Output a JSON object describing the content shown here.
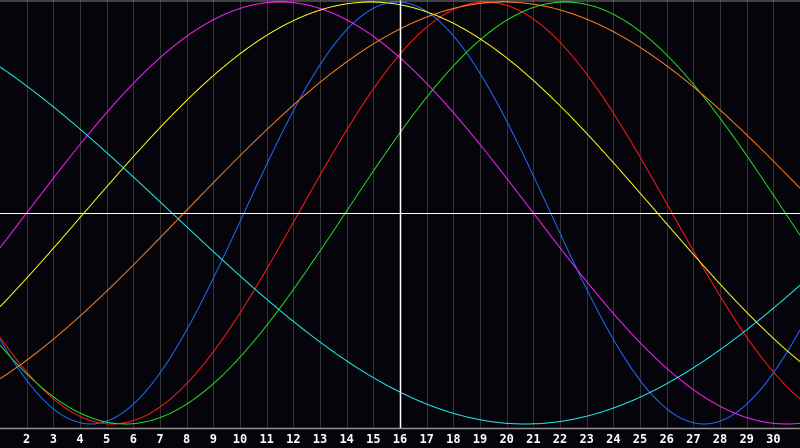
{
  "chart_data": {
    "type": "line",
    "title": "",
    "xlabel": "",
    "ylabel": "",
    "x_tick_labels": [
      "2",
      "3",
      "4",
      "5",
      "6",
      "7",
      "8",
      "9",
      "10",
      "11",
      "12",
      "13",
      "14",
      "15",
      "16",
      "17",
      "18",
      "19",
      "20",
      "21",
      "22",
      "23",
      "24",
      "25",
      "26",
      "27",
      "28",
      "29",
      "30"
    ],
    "xlim": [
      1,
      31
    ],
    "ylim": [
      -1,
      1
    ],
    "grid": true,
    "cursor_day": 16,
    "background": "#05040a",
    "grid_color": "#333333",
    "series": [
      {
        "color": "#1e6cff",
        "period_days": 23,
        "peak_day": 15.9
      },
      {
        "color": "#ff1a1a",
        "period_days": 28,
        "peak_day": 19.2
      },
      {
        "color": "#22e022",
        "period_days": 33,
        "peak_day": 22.2
      },
      {
        "color": "#ff20ff",
        "period_days": 38,
        "peak_day": 11.5
      },
      {
        "color": "#ffff20",
        "period_days": 43,
        "peak_day": 14.9
      },
      {
        "color": "#ff8020",
        "period_days": 48,
        "peak_day": 19.9
      },
      {
        "color": "#20f0f0",
        "period_days": 53,
        "peak_day": -5.8
      }
    ]
  }
}
